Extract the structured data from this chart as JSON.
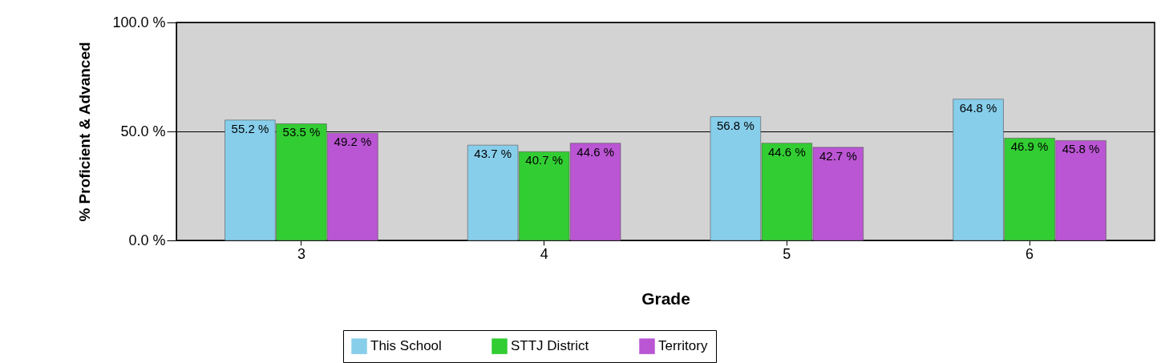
{
  "chart_data": {
    "type": "bar",
    "xlabel": "Grade",
    "ylabel": "% Proficient & Advanced",
    "categories": [
      "3",
      "4",
      "5",
      "6"
    ],
    "series": [
      {
        "name": "This School",
        "color": "#87ceeb",
        "values": [
          55.2,
          43.7,
          56.8,
          64.8
        ],
        "value_labels": [
          "55.2 %",
          "43.7 %",
          "56.8 %",
          "64.8 %"
        ]
      },
      {
        "name": "STTJ District",
        "color": "#32cd32",
        "values": [
          53.5,
          40.7,
          44.6,
          46.9
        ],
        "value_labels": [
          "53.5 %",
          "40.7 %",
          "44.6 %",
          "46.9 %"
        ]
      },
      {
        "name": "Territory",
        "color": "#ba55d3",
        "values": [
          49.2,
          44.6,
          42.7,
          45.8
        ],
        "value_labels": [
          "49.2 %",
          "44.6 %",
          "42.7 %",
          "45.8 %"
        ]
      }
    ],
    "ylim": [
      0,
      100
    ],
    "yticks": [
      {
        "value": 0,
        "label": "0.0 %"
      },
      {
        "value": 50,
        "label": "50.0 %"
      },
      {
        "value": 100,
        "label": "100.0 %"
      }
    ],
    "grid": "y",
    "legend": "bottom"
  }
}
